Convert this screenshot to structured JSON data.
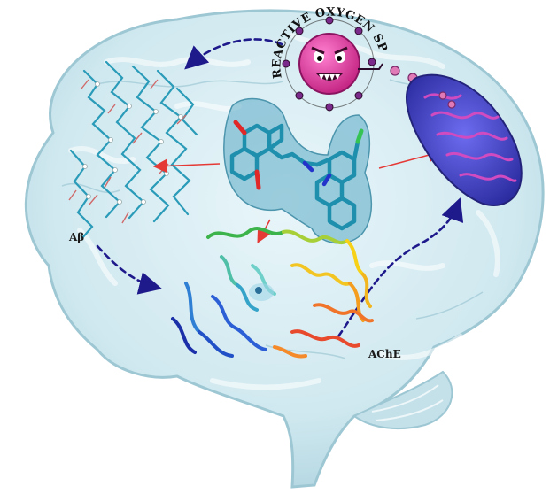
{
  "labels": {
    "abeta": "Aβ",
    "ache": "AChE",
    "ros": "REACTIVE OXYGEN SPECIES"
  },
  "colors": {
    "brain_fill": "#cfe8ef",
    "brain_stroke": "#9ec7d4",
    "red_arrow": "#e53935",
    "dashed_arrow": "#1f1a8c",
    "ligand": "#2a9bb8",
    "ligand_surface": "#5aa9c4",
    "ros_body": "#e0369c",
    "mitochondrion": "#3b3fc9",
    "mito_cristae": "#c43bb0"
  },
  "icons": [
    "brain-outline",
    "amyloid-fibril",
    "ligand-molecule",
    "ros-monster",
    "mitochondrion",
    "ache-protein"
  ]
}
